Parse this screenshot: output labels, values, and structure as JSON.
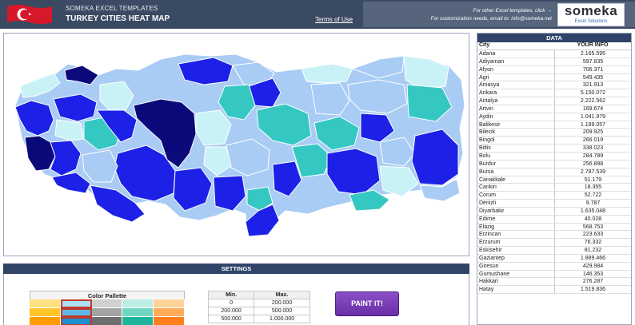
{
  "header": {
    "subtitle": "SOMEKA EXCEL TEMPLATES",
    "title": "TURKEY CITIES HEAT MAP",
    "terms_link": "Terms of Use",
    "promo_line1": "For other Excel templates, click →",
    "promo_line2": "For customization needs, email to: info@someka.net",
    "logo_main": "someka",
    "logo_sub": "Excel Solutions"
  },
  "colors": {
    "header_bg": "#3b4a63",
    "section_bar": "#2f4468",
    "map_light": "#a9ccf5",
    "map_pale": "#c9f2f7",
    "map_teal": "#35c8c2",
    "map_blue": "#1d20e6",
    "map_navy": "#0b0a7a",
    "button": "#7a3fba"
  },
  "settings": {
    "bar_label": "SETTINGS",
    "palette_title": "Color Pallette",
    "palette_rows": [
      [
        "#ffe082",
        "#aee0f5",
        "#d0d0d0",
        "#bdeee6",
        "#ffd29a"
      ],
      [
        "#ffc42a",
        "#5fb8e6",
        "#a3a3a3",
        "#6fd6c2",
        "#ffab5a"
      ],
      [
        "#ff9d00",
        "#1b8fd0",
        "#6e6e6e",
        "#1fb59b",
        "#ff7f1a"
      ]
    ],
    "range_headers": [
      "Min.",
      "Max."
    ],
    "ranges": [
      [
        "0",
        "200.000"
      ],
      [
        "200.000",
        "500.000"
      ],
      [
        "500.000",
        "1.000.000"
      ]
    ],
    "paint_button": "PAINT IT!"
  },
  "data_table": {
    "title": "DATA",
    "col_city": "City",
    "col_info": "YOUR INFO",
    "rows": [
      [
        "Adana",
        "2.165.595"
      ],
      [
        "Adiyaman",
        "597.835"
      ],
      [
        "Afyon",
        "706.371"
      ],
      [
        "Agri",
        "549.435"
      ],
      [
        "Amasya",
        "321.913"
      ],
      [
        "Ankara",
        "5.150.072"
      ],
      [
        "Antalya",
        "2.222.562"
      ],
      [
        "Artvin",
        "169.674"
      ],
      [
        "Aydin",
        "1.041.979"
      ],
      [
        "Balikesir",
        "1.189.057"
      ],
      [
        "Bilecik",
        "209.925"
      ],
      [
        "Bingol",
        "266.019"
      ],
      [
        "Bitlis",
        "338.023"
      ],
      [
        "Bolu",
        "284.789"
      ],
      [
        "Burdur",
        "256.898"
      ],
      [
        "Bursa",
        "2.787.539"
      ],
      [
        "Canakkale",
        "51.179"
      ],
      [
        "Cankiri",
        "18.355"
      ],
      [
        "Corum",
        "52.722"
      ],
      [
        "Denizli",
        "9.787"
      ],
      [
        "Diyarbakir",
        "1.635.048"
      ],
      [
        "Edirne",
        "40.028"
      ],
      [
        "Elazig",
        "568.753"
      ],
      [
        "Erzincan",
        "223.633"
      ],
      [
        "Erzurum",
        "76.332"
      ],
      [
        "Eskisehir",
        "81.232"
      ],
      [
        "Gaziantep",
        "1.889.466"
      ],
      [
        "Giresun",
        "429.984"
      ],
      [
        "Gumushane",
        "146.353"
      ],
      [
        "Hakkari",
        "276.287"
      ],
      [
        "Hatay",
        "1.519.836"
      ]
    ]
  }
}
